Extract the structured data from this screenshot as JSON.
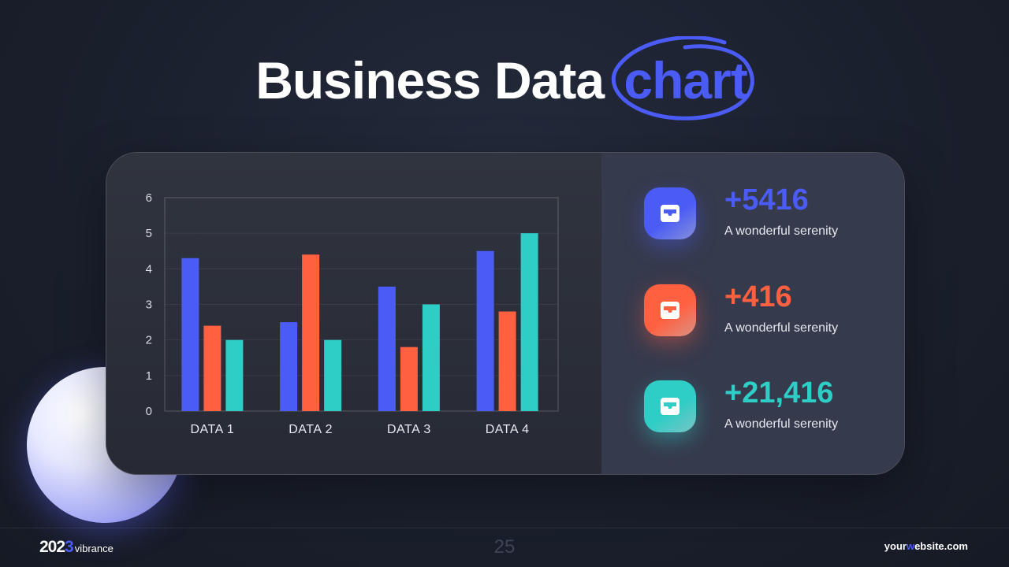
{
  "slide": {
    "title_main": "Business Data",
    "title_accent": "chart",
    "page_number": "25",
    "brand_year": "202",
    "brand_year_accent": "3",
    "brand_name": "vibrance",
    "website_pre": "your",
    "website_accent": "w",
    "website_post": "ebsite.com"
  },
  "colors": {
    "blue": "#4a5cf5",
    "orange": "#ff6040",
    "teal": "#2ecdc6"
  },
  "chart_data": {
    "type": "bar",
    "categories": [
      "DATA 1",
      "DATA 2",
      "DATA 3",
      "DATA 4"
    ],
    "series": [
      {
        "values": [
          4.3,
          2.5,
          3.5,
          4.5
        ],
        "color": "#4a5cf5"
      },
      {
        "values": [
          2.4,
          4.4,
          1.8,
          2.8
        ],
        "color": "#ff6040"
      },
      {
        "values": [
          2.0,
          2.0,
          3.0,
          5.0
        ],
        "color": "#2ecdc6"
      }
    ],
    "yticks": [
      "0",
      "1",
      "2",
      "3",
      "4",
      "5",
      "6"
    ],
    "ylim": [
      0,
      6
    ],
    "grid": true,
    "legend": "none"
  },
  "stats": [
    {
      "value": "+5416",
      "caption": "A wonderful serenity",
      "color": "#4a5cf5",
      "icon": "inbox-icon"
    },
    {
      "value": "+416",
      "caption": "A wonderful serenity",
      "color": "#ff6040",
      "icon": "inbox-icon"
    },
    {
      "value": "+21,416",
      "caption": "A wonderful serenity",
      "color": "#2ecdc6",
      "icon": "inbox-icon"
    }
  ]
}
